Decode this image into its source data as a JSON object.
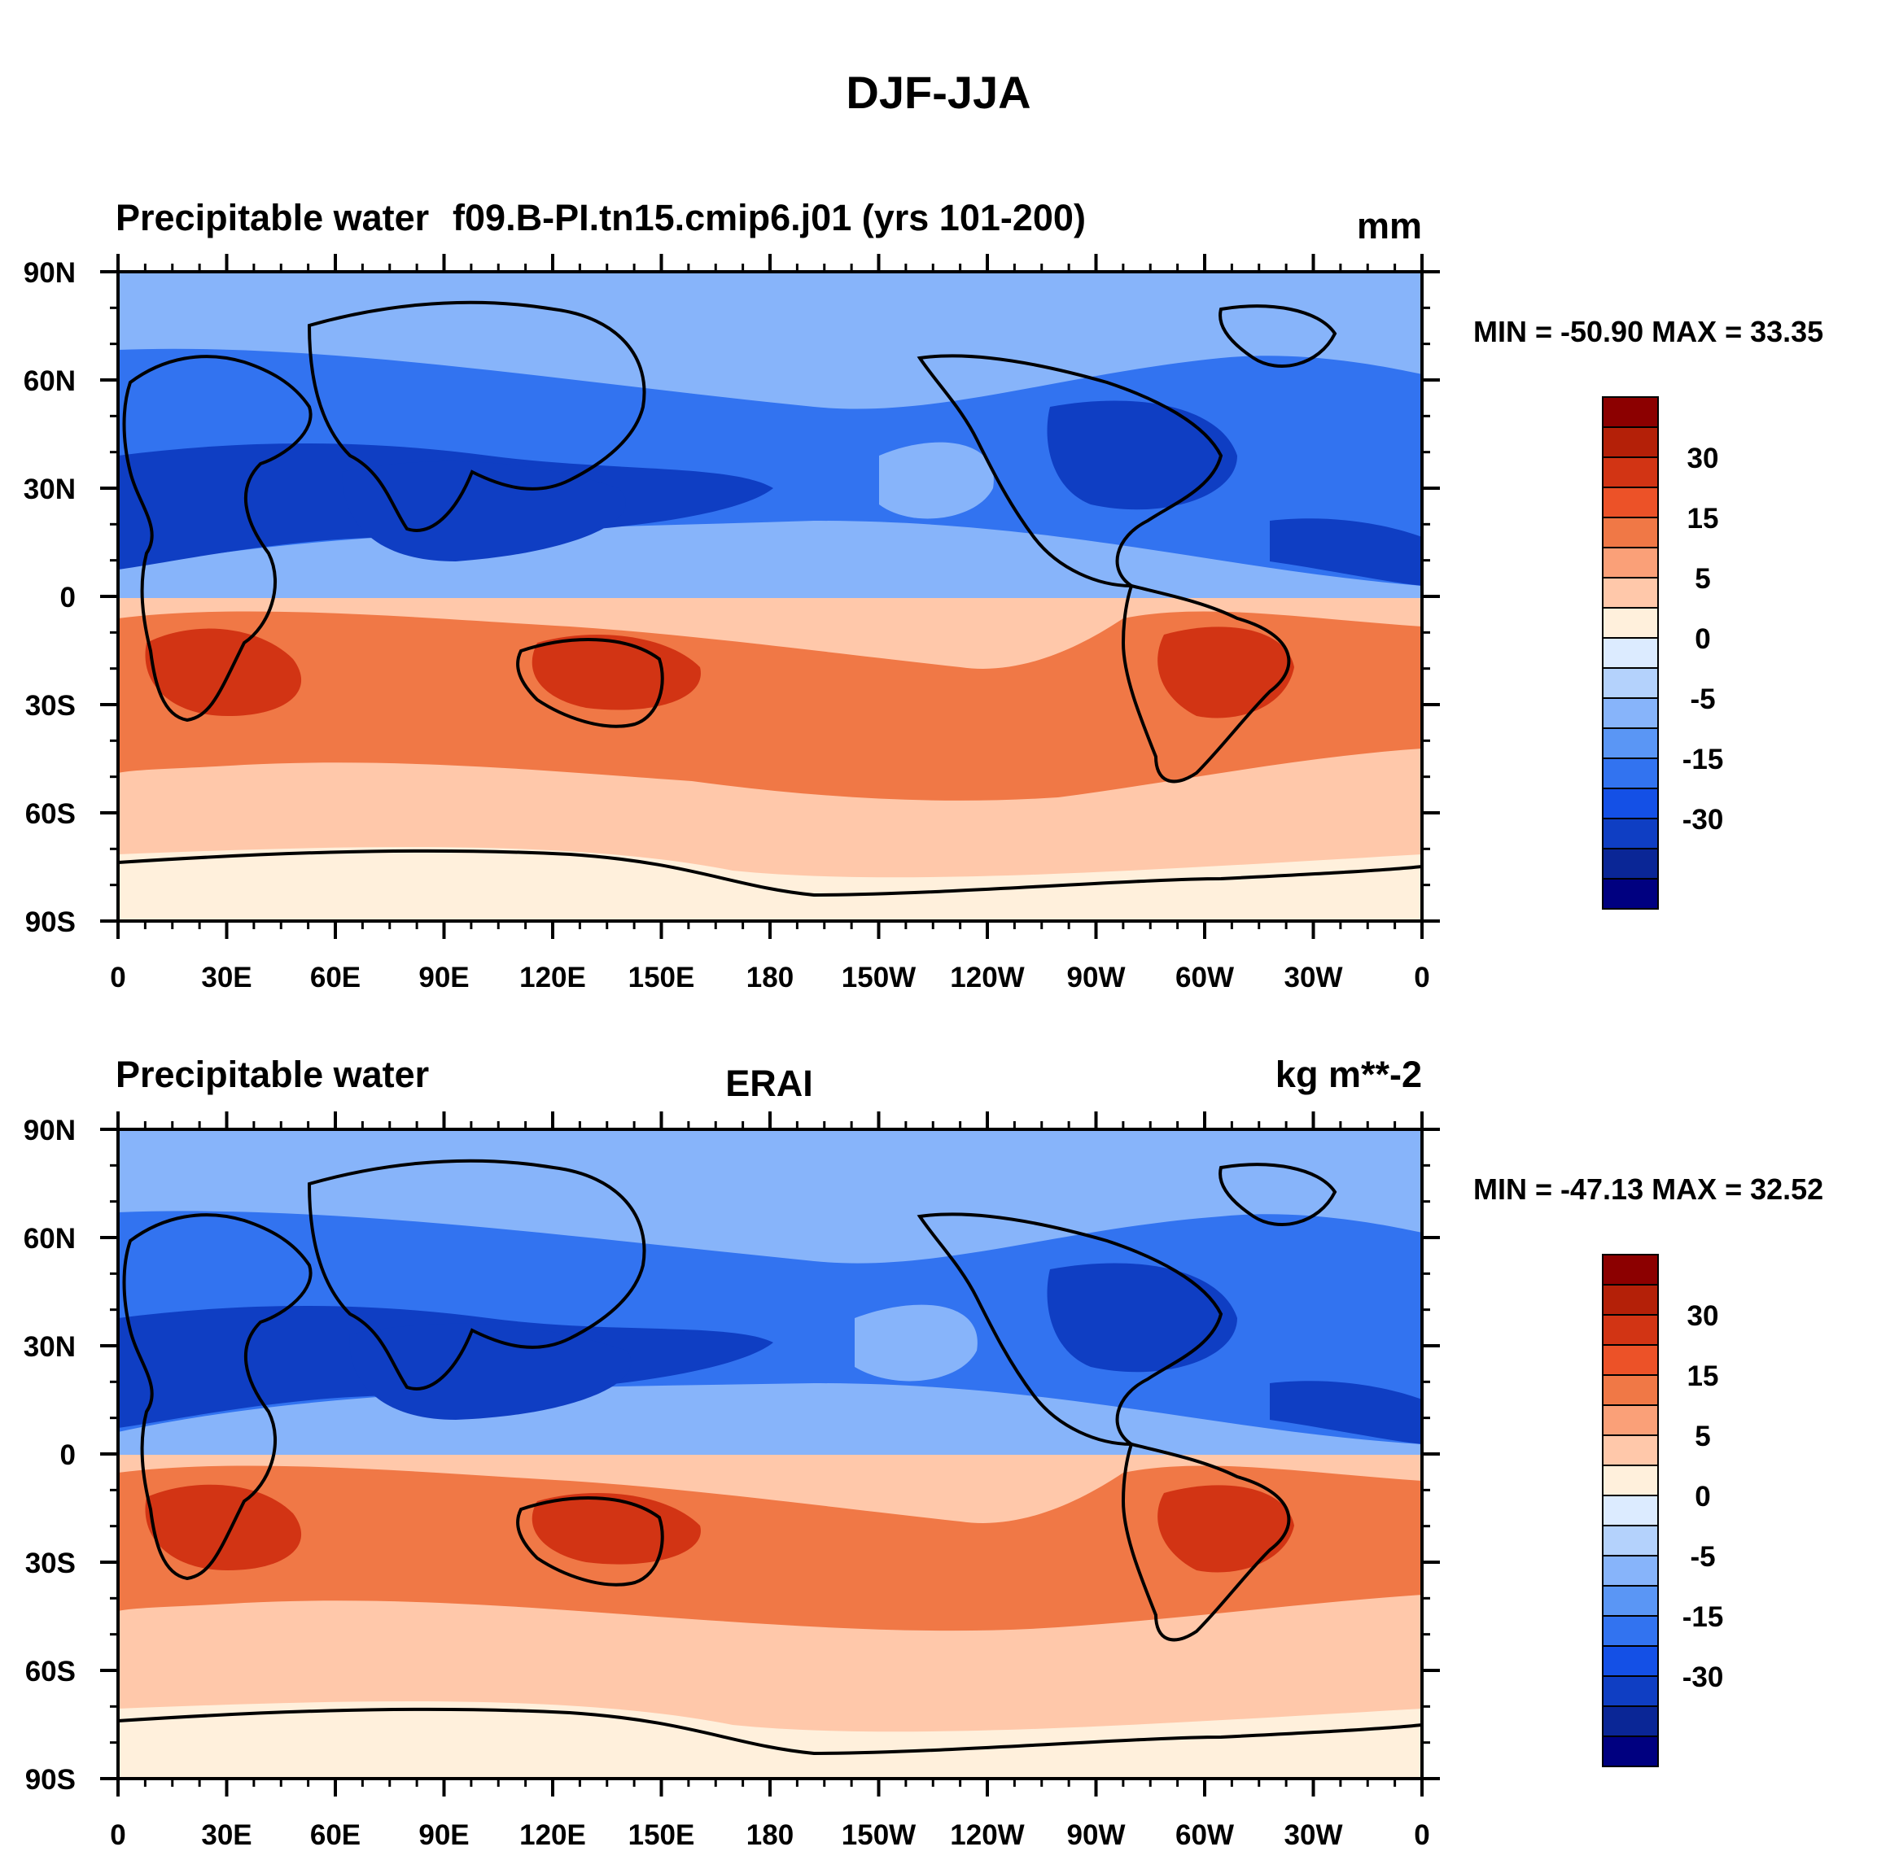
{
  "figure": {
    "title": "DJF-JJA"
  },
  "colorbar": {
    "colors": [
      "#000080",
      "#0a2696",
      "#0f3ec3",
      "#1450e6",
      "#3273f0",
      "#5a96f5",
      "#87b4fa",
      "#b4d2fc",
      "#dcebff",
      "#fff0dc",
      "#ffc8aa",
      "#faa078",
      "#f07846",
      "#ec5228",
      "#d23414",
      "#b42008",
      "#8c0000"
    ],
    "tick_labels": [
      "30",
      "15",
      "5",
      "0",
      "-5",
      "-15",
      "-30"
    ],
    "tick_boundaries": [
      2,
      4,
      6,
      8,
      10,
      12,
      14
    ]
  },
  "map_colors": {
    "neg_strong": "#0f3ec3",
    "neg_mid": "#3273f0",
    "neg_weak": "#87b4fa",
    "pos_weak": "#ffc8aa",
    "pos_mid": "#f07846",
    "pos_strong": "#d23414",
    "coast": "#000000"
  },
  "axes": {
    "lon_labels": [
      "0",
      "30E",
      "60E",
      "90E",
      "120E",
      "150E",
      "180",
      "150W",
      "120W",
      "90W",
      "60W",
      "30W",
      "0"
    ],
    "lat_labels": [
      "90N",
      "60N",
      "30N",
      "0",
      "30S",
      "60S",
      "90S"
    ]
  },
  "panels": [
    {
      "left_title": "Precipitable water",
      "center_title": "f09.B-PI.tn15.cmip6.j01 (yrs 101-200)",
      "right_title": "mm",
      "minmax": "MIN = -50.90 MAX =  33.35"
    },
    {
      "left_title": "Precipitable water",
      "center_title": "ERAI",
      "right_title": "kg m**-2",
      "minmax": "MIN = -47.13 MAX =  32.52"
    }
  ]
}
